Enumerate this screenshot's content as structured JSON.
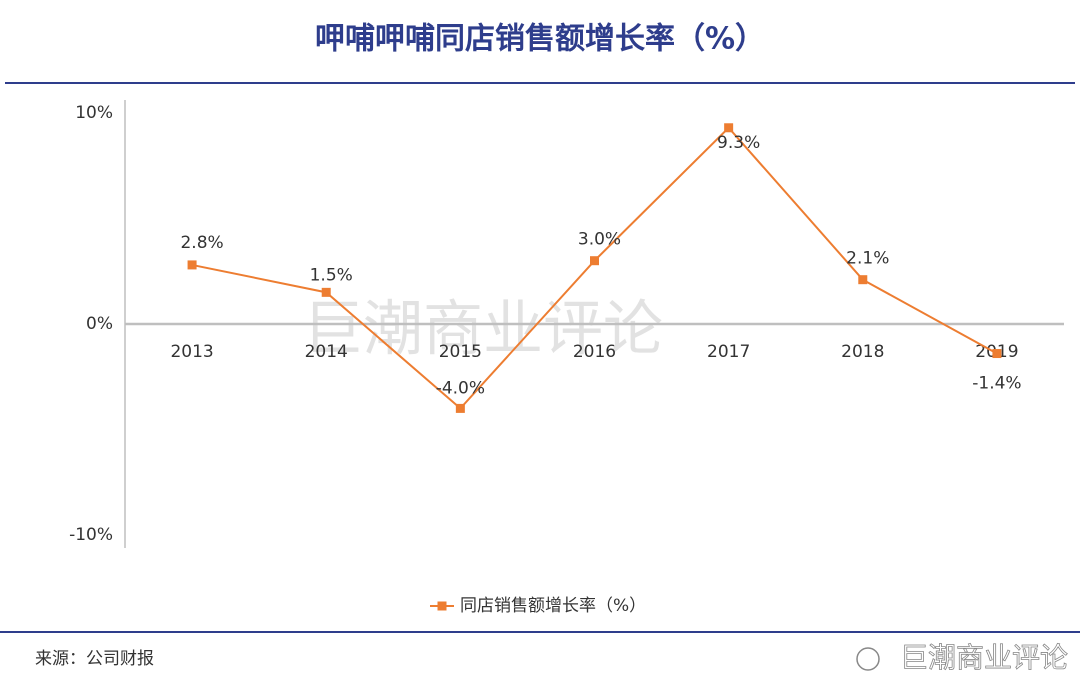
{
  "chart_data": {
    "type": "line",
    "title": "呷哺呷哺同店销售额增长率（%）",
    "categories": [
      "2013",
      "2014",
      "2015",
      "2016",
      "2017",
      "2018",
      "2019"
    ],
    "series": [
      {
        "name": "同店销售额增长率（%）",
        "color": "#ed7d31",
        "values": [
          2.8,
          1.5,
          -4.0,
          3.0,
          9.3,
          2.1,
          -1.4
        ],
        "value_labels": [
          "2.8%",
          "1.5%",
          "-4.0%",
          "3.0%",
          "9.3%",
          "2.1%",
          "-1.4%"
        ]
      }
    ],
    "ylim": [
      -10,
      10
    ],
    "yticks": [
      {
        "value": -10,
        "label": "-10%"
      },
      {
        "value": 0,
        "label": "0%"
      },
      {
        "value": 10,
        "label": "10%"
      }
    ],
    "legend": "bottom",
    "watermark": "巨潮商业评论",
    "source": "来源：公司财报",
    "brand": "巨潮商业评论"
  }
}
